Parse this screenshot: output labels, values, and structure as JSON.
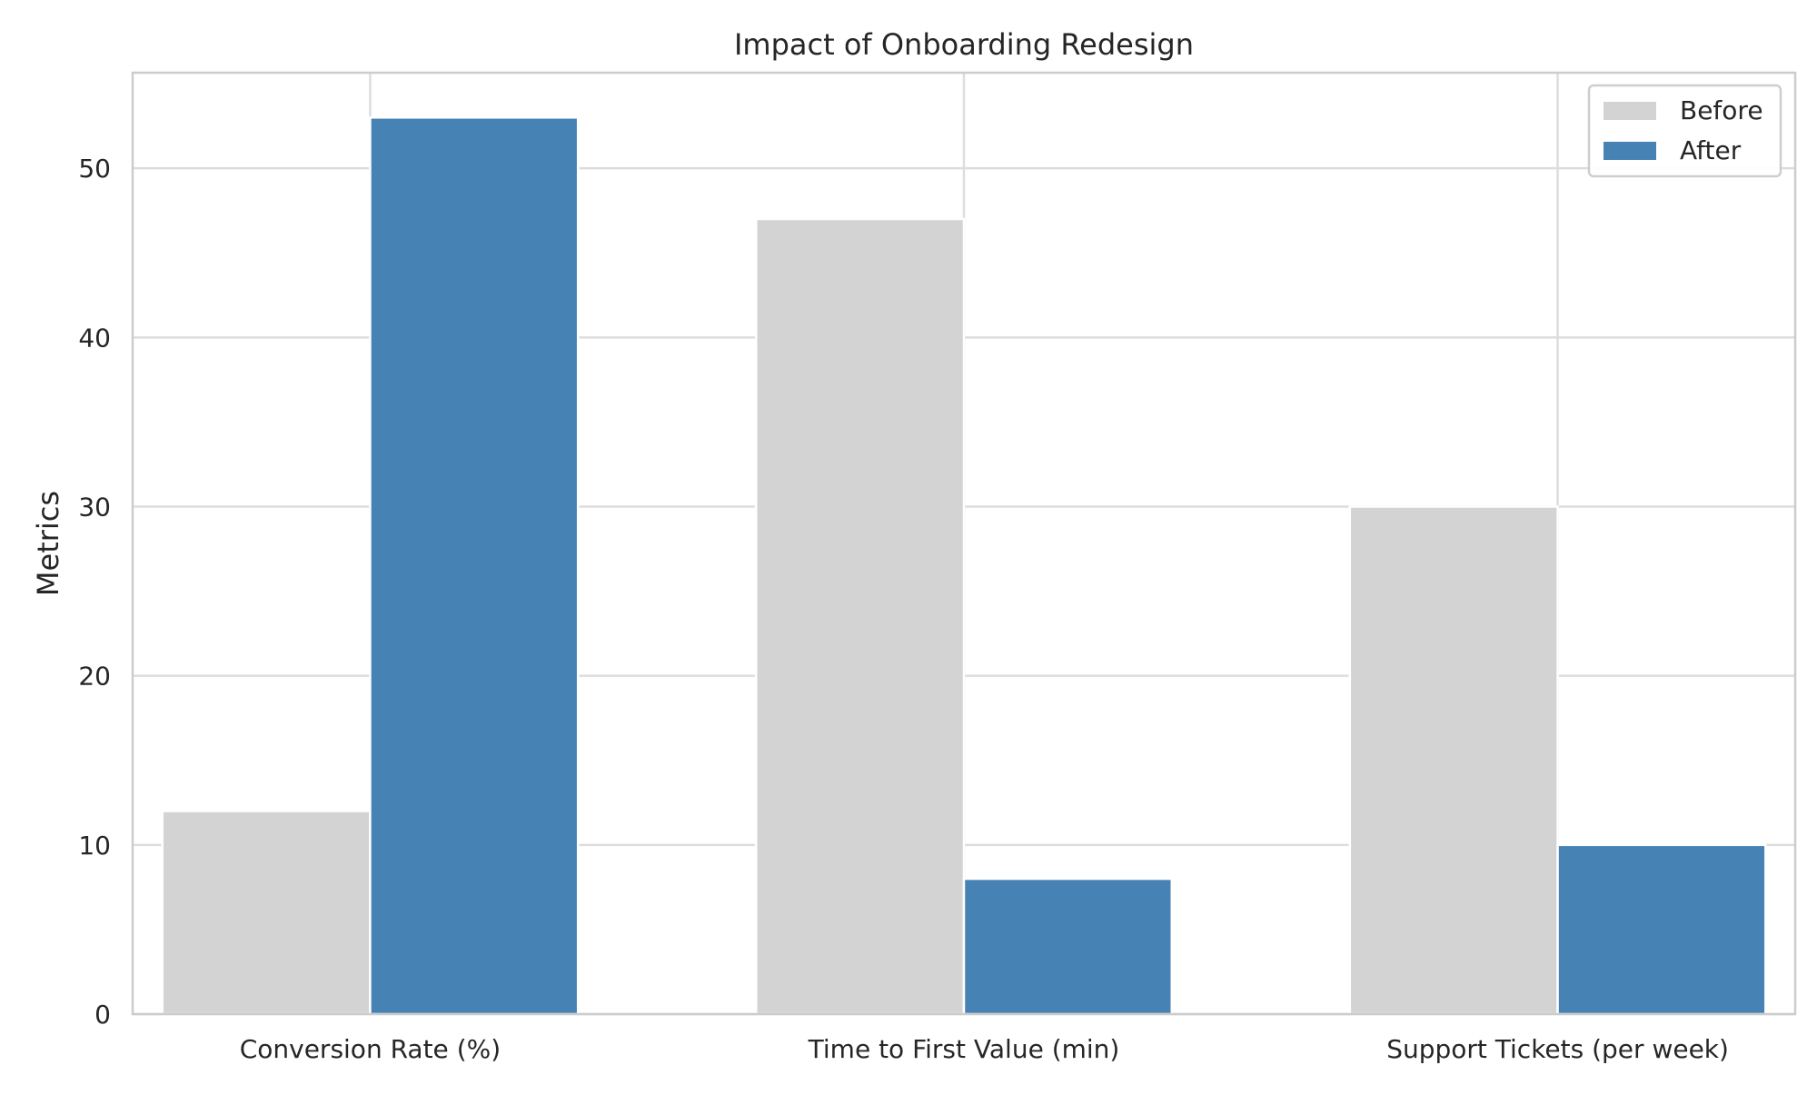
{
  "chart_data": {
    "type": "bar",
    "title": "Impact of Onboarding Redesign",
    "xlabel": "",
    "ylabel": "Metrics",
    "categories": [
      "Conversion Rate (%)",
      "Time to First Value (min)",
      "Support Tickets (per week)"
    ],
    "series": [
      {
        "name": "Before",
        "values": [
          12,
          47,
          30
        ],
        "color": "#d3d3d3"
      },
      {
        "name": "After",
        "values": [
          53,
          8,
          10
        ],
        "color": "#4682b4"
      }
    ],
    "ylim": [
      0,
      55.65
    ],
    "yticks": [
      0,
      10,
      20,
      30,
      40,
      50
    ],
    "grid": true,
    "legend": "top-right"
  }
}
